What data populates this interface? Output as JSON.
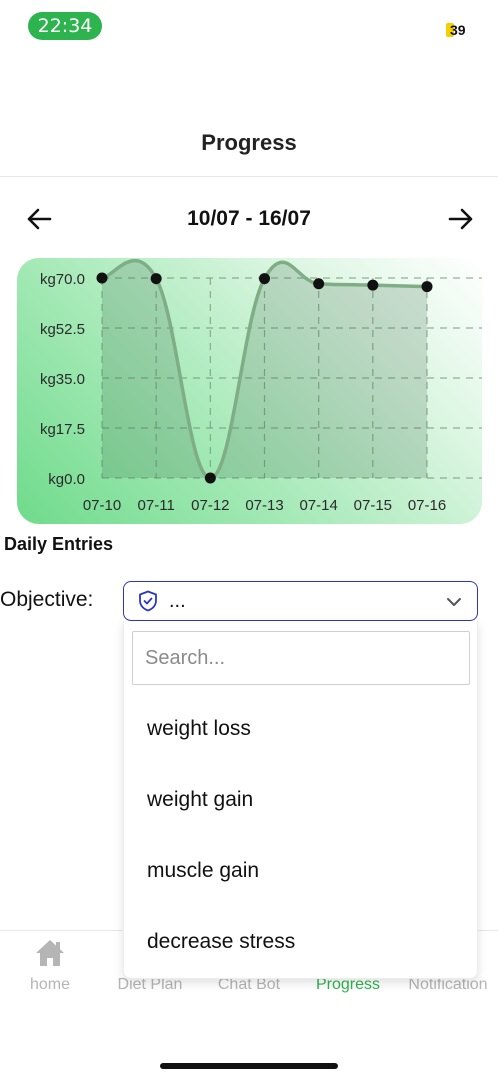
{
  "status_bar": {
    "time": "22:34",
    "battery": "39"
  },
  "header": {
    "title": "Progress"
  },
  "date_nav": {
    "range": "10/07 - 16/07"
  },
  "chart_data": {
    "type": "area",
    "categories": [
      "07-10",
      "07-11",
      "07-12",
      "07-13",
      "07-14",
      "07-15",
      "07-16"
    ],
    "series": [
      {
        "values": [
          70.0,
          69.8,
          0.0,
          69.8,
          68.0,
          67.5,
          67.0
        ]
      }
    ],
    "y_ticks": [
      "kg70.0",
      "kg52.5",
      "kg35.0",
      "kg17.5",
      "kg0.0"
    ],
    "ylim": [
      0,
      70
    ],
    "grid": true,
    "colors": {
      "line": "#7fae86",
      "area": "rgba(70,110,80,0.22)",
      "point": "#111111"
    }
  },
  "section": {
    "title": "Daily Entries"
  },
  "objective": {
    "label": "Objective:",
    "selected": "...",
    "search_placeholder": "Search...",
    "options": [
      "weight loss",
      "weight gain",
      "muscle gain",
      "decrease stress"
    ]
  },
  "tabs": [
    {
      "label": "home",
      "icon": "home-icon",
      "active": false
    },
    {
      "label": "Diet Plan",
      "active": false
    },
    {
      "label": "Chat Bot",
      "active": false
    },
    {
      "label": "Progress",
      "active": true
    },
    {
      "label": "Notification",
      "active": false
    }
  ],
  "colors": {
    "accent": "#2eb44f",
    "select_border": "#2b35c6"
  }
}
